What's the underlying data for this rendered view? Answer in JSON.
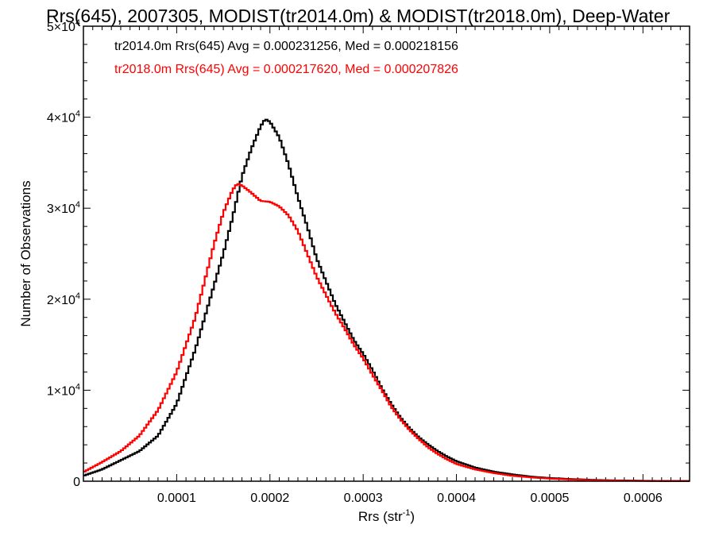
{
  "chart_data": {
    "type": "line",
    "title": "Rrs(645), 2007305, MODIST(tr2014.0m) & MODIST(tr2018.0m), Deep-Water",
    "xlabel": "Rrs (str",
    "xlabel_sup": "-1",
    "xlabel_end": ")",
    "ylabel": "Number of Observations",
    "xlim": [
      0.0,
      0.00065
    ],
    "ylim": [
      0,
      50000
    ],
    "xticks": [
      {
        "value": 0.0001,
        "label": "0.0001"
      },
      {
        "value": 0.0002,
        "label": "0.0002"
      },
      {
        "value": 0.0003,
        "label": "0.0003"
      },
      {
        "value": 0.0004,
        "label": "0.0004"
      },
      {
        "value": 0.0005,
        "label": "0.0005"
      },
      {
        "value": 0.0006,
        "label": "0.0006"
      }
    ],
    "yticks": [
      {
        "value": 0,
        "mant": "0",
        "exp": ""
      },
      {
        "value": 10000,
        "mant": "1×10",
        "exp": "4"
      },
      {
        "value": 20000,
        "mant": "2×10",
        "exp": "4"
      },
      {
        "value": 30000,
        "mant": "3×10",
        "exp": "4"
      },
      {
        "value": 40000,
        "mant": "4×10",
        "exp": "4"
      },
      {
        "value": 50000,
        "mant": "5×10",
        "exp": "4"
      }
    ],
    "annotations": [
      {
        "text": "tr2014.0m Rrs(645) Avg = 0.000231256, Med = 0.000218156",
        "color": "#000000"
      },
      {
        "text": "tr2018.0m Rrs(645) Avg = 0.000217620, Med = 0.000207826",
        "color": "#ff0000"
      }
    ],
    "grid": false,
    "step": "histogram",
    "series": [
      {
        "name": "tr2014.0m",
        "color": "#000000",
        "x": [
          0.0,
          2e-05,
          4e-05,
          6e-05,
          8e-05,
          0.0001,
          0.00012,
          0.00014,
          0.00015,
          0.00016,
          0.00017,
          0.00018,
          0.00019,
          0.000195,
          0.0002,
          0.00021,
          0.00022,
          0.00023,
          0.00024,
          0.00025,
          0.00026,
          0.00027,
          0.00028,
          0.00029,
          0.0003,
          0.00031,
          0.00032,
          0.00033,
          0.00034,
          0.00035,
          0.00036,
          0.00037,
          0.00038,
          0.00039,
          0.0004,
          0.00042,
          0.00044,
          0.00046,
          0.00048,
          0.0005,
          0.00052,
          0.00054,
          0.00056,
          0.00058,
          0.0006,
          0.00062,
          0.00065
        ],
        "y": [
          600,
          1300,
          2300,
          3300,
          5000,
          8500,
          14500,
          21500,
          25000,
          29000,
          33500,
          36500,
          39000,
          39800,
          39500,
          37800,
          34800,
          31200,
          28000,
          24500,
          22000,
          19500,
          17500,
          15500,
          14000,
          12200,
          10200,
          8500,
          7000,
          5800,
          4800,
          4000,
          3300,
          2700,
          2200,
          1500,
          1050,
          750,
          500,
          350,
          250,
          170,
          110,
          80,
          50,
          35,
          20
        ]
      },
      {
        "name": "tr2018.0m",
        "color": "#ff0000",
        "x": [
          0.0,
          2e-05,
          4e-05,
          6e-05,
          8e-05,
          0.0001,
          0.00012,
          0.00013,
          0.00014,
          0.00015,
          0.00016,
          0.000165,
          0.00017,
          0.00018,
          0.00019,
          0.0002,
          0.00021,
          0.00022,
          0.00023,
          0.00024,
          0.00025,
          0.00026,
          0.00027,
          0.00028,
          0.00029,
          0.0003,
          0.00031,
          0.00032,
          0.00033,
          0.00034,
          0.00035,
          0.00036,
          0.00037,
          0.00038,
          0.00039,
          0.0004,
          0.00042,
          0.00044,
          0.00046,
          0.00048,
          0.0005,
          0.00052,
          0.00054,
          0.00056,
          0.00058,
          0.0006,
          0.00062,
          0.00065
        ],
        "y": [
          1000,
          2100,
          3300,
          5000,
          7800,
          12000,
          18000,
          22000,
          26000,
          29500,
          32000,
          32700,
          32500,
          31700,
          30800,
          30700,
          30200,
          29200,
          27500,
          25000,
          22500,
          20500,
          18500,
          16800,
          15000,
          13500,
          11700,
          10000,
          8200,
          6800,
          5600,
          4600,
          3700,
          3000,
          2400,
          1900,
          1300,
          900,
          600,
          420,
          290,
          200,
          130,
          90,
          60,
          40,
          25,
          15
        ]
      }
    ]
  }
}
